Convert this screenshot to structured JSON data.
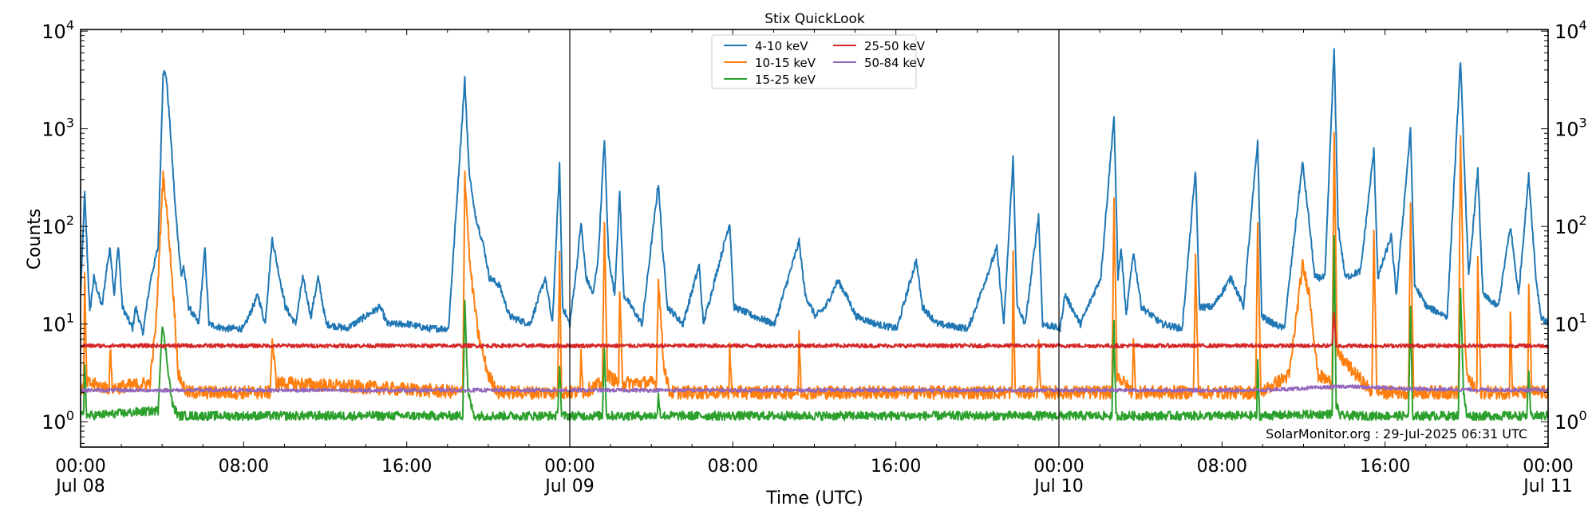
{
  "chart_data": {
    "type": "line",
    "title": "Stix QuickLook",
    "xlabel": "Time (UTC)",
    "ylabel": "Counts",
    "yscale": "log",
    "ylim": [
      0.55,
      10400
    ],
    "x_unit": "hours since 2025-07-08 00:00 UTC",
    "xlim": [
      0,
      72
    ],
    "grid": false,
    "legend_placement": "top-center",
    "annotation": "SolarMonitor.org : 29-Jul-2025 06:31 UTC",
    "day_boundaries": [
      24,
      48
    ],
    "x_ticks": [
      {
        "x": 0,
        "label": "00:00",
        "sublabel": "Jul 08"
      },
      {
        "x": 8,
        "label": "08:00",
        "sublabel": ""
      },
      {
        "x": 16,
        "label": "16:00",
        "sublabel": ""
      },
      {
        "x": 24,
        "label": "00:00",
        "sublabel": "Jul 09"
      },
      {
        "x": 32,
        "label": "08:00",
        "sublabel": ""
      },
      {
        "x": 40,
        "label": "16:00",
        "sublabel": ""
      },
      {
        "x": 48,
        "label": "00:00",
        "sublabel": "Jul 10"
      },
      {
        "x": 56,
        "label": "08:00",
        "sublabel": ""
      },
      {
        "x": 64,
        "label": "16:00",
        "sublabel": ""
      },
      {
        "x": 72,
        "label": "00:00",
        "sublabel": "Jul 11"
      }
    ],
    "y_ticks": [
      {
        "value": 1,
        "base": "10",
        "exp": "0"
      },
      {
        "value": 10,
        "base": "10",
        "exp": "1"
      },
      {
        "value": 100,
        "base": "10",
        "exp": "2"
      },
      {
        "value": 1000,
        "base": "10",
        "exp": "3"
      },
      {
        "value": 10000,
        "base": "10",
        "exp": "4"
      }
    ],
    "series": [
      {
        "name": "4-10 keV",
        "color": "#1f77b4",
        "points": [
          [
            0,
            20
          ],
          [
            0.2,
            220
          ],
          [
            0.45,
            13
          ],
          [
            0.65,
            30
          ],
          [
            1.05,
            15
          ],
          [
            1.3,
            40
          ],
          [
            1.45,
            60
          ],
          [
            1.65,
            20
          ],
          [
            1.85,
            65
          ],
          [
            2.05,
            15
          ],
          [
            2.55,
            9
          ],
          [
            2.7,
            15
          ],
          [
            3.05,
            8
          ],
          [
            3.45,
            30
          ],
          [
            3.8,
            60
          ],
          [
            4.05,
            3900
          ],
          [
            4.2,
            3500
          ],
          [
            4.4,
            1000
          ],
          [
            4.65,
            150
          ],
          [
            4.95,
            30
          ],
          [
            5.05,
            40
          ],
          [
            5.3,
            15
          ],
          [
            5.8,
            10
          ],
          [
            6.1,
            60
          ],
          [
            6.3,
            10
          ],
          [
            7.05,
            9
          ],
          [
            8.0,
            9
          ],
          [
            8.7,
            20
          ],
          [
            9.05,
            10
          ],
          [
            9.4,
            75
          ],
          [
            9.65,
            40
          ],
          [
            10.05,
            15
          ],
          [
            10.55,
            10
          ],
          [
            10.9,
            30
          ],
          [
            11.3,
            12
          ],
          [
            11.65,
            30
          ],
          [
            12.05,
            10
          ],
          [
            13.05,
            9
          ],
          [
            14.7,
            15
          ],
          [
            15.05,
            10
          ],
          [
            16.05,
            10
          ],
          [
            17.05,
            9
          ],
          [
            18.05,
            9
          ],
          [
            18.85,
            3200
          ],
          [
            19.05,
            400
          ],
          [
            19.3,
            150
          ],
          [
            19.8,
            60
          ],
          [
            20.05,
            30
          ],
          [
            20.55,
            25
          ],
          [
            21.05,
            12
          ],
          [
            22.05,
            10
          ],
          [
            22.8,
            30
          ],
          [
            23.15,
            10
          ],
          [
            23.5,
            420
          ],
          [
            23.65,
            15
          ],
          [
            24.0,
            10
          ],
          [
            24.35,
            40
          ],
          [
            24.55,
            110
          ],
          [
            24.8,
            30
          ],
          [
            25.15,
            20
          ],
          [
            25.4,
            50
          ],
          [
            25.7,
            800
          ],
          [
            25.9,
            50
          ],
          [
            26.2,
            20
          ],
          [
            26.45,
            220
          ],
          [
            26.65,
            20
          ],
          [
            27.55,
            10
          ],
          [
            28.35,
            280
          ],
          [
            28.55,
            60
          ],
          [
            28.8,
            15
          ],
          [
            29.55,
            10
          ],
          [
            30.35,
            40
          ],
          [
            30.55,
            10
          ],
          [
            31.85,
            110
          ],
          [
            32.05,
            15
          ],
          [
            33.05,
            12
          ],
          [
            34.05,
            10
          ],
          [
            35.25,
            70
          ],
          [
            35.55,
            20
          ],
          [
            36.05,
            12
          ],
          [
            36.55,
            15
          ],
          [
            37.15,
            28
          ],
          [
            37.55,
            20
          ],
          [
            38.05,
            12
          ],
          [
            39.05,
            10
          ],
          [
            40.05,
            9
          ],
          [
            41.0,
            45
          ],
          [
            41.3,
            15
          ],
          [
            42.05,
            10
          ],
          [
            43.55,
            9
          ],
          [
            44.95,
            60
          ],
          [
            45.3,
            10
          ],
          [
            45.75,
            500
          ],
          [
            45.95,
            15
          ],
          [
            46.35,
            10
          ],
          [
            47.0,
            130
          ],
          [
            47.2,
            10
          ],
          [
            48.05,
            9
          ],
          [
            48.3,
            20
          ],
          [
            49.05,
            10
          ],
          [
            50.05,
            30
          ],
          [
            50.7,
            1350
          ],
          [
            50.9,
            30
          ],
          [
            51.05,
            60
          ],
          [
            51.3,
            12
          ],
          [
            51.65,
            55
          ],
          [
            52.05,
            15
          ],
          [
            53.05,
            10
          ],
          [
            54.05,
            9
          ],
          [
            54.7,
            380
          ],
          [
            54.9,
            15
          ],
          [
            55.55,
            15
          ],
          [
            56.45,
            30
          ],
          [
            57.05,
            15
          ],
          [
            57.75,
            750
          ],
          [
            57.95,
            12
          ],
          [
            58.55,
            10
          ],
          [
            59.05,
            9
          ],
          [
            59.95,
            450
          ],
          [
            60.3,
            100
          ],
          [
            60.55,
            30
          ],
          [
            61.05,
            30
          ],
          [
            61.5,
            6500
          ],
          [
            61.7,
            100
          ],
          [
            62.05,
            30
          ],
          [
            62.8,
            35
          ],
          [
            63.45,
            600
          ],
          [
            63.65,
            30
          ],
          [
            64.3,
            80
          ],
          [
            64.55,
            20
          ],
          [
            65.25,
            1000
          ],
          [
            65.45,
            25
          ],
          [
            66.05,
            15
          ],
          [
            67.05,
            12
          ],
          [
            67.7,
            5100
          ],
          [
            67.9,
            370
          ],
          [
            68.1,
            30
          ],
          [
            68.55,
            370
          ],
          [
            68.8,
            20
          ],
          [
            69.55,
            15
          ],
          [
            70.15,
            100
          ],
          [
            70.55,
            20
          ],
          [
            71.05,
            330
          ],
          [
            71.4,
            30
          ],
          [
            71.65,
            12
          ],
          [
            72,
            10
          ]
        ]
      },
      {
        "name": "10-15 keV",
        "color": "#ff7f0e",
        "points": [
          [
            0,
            2.2
          ],
          [
            0.15,
            2.2
          ],
          [
            0.2,
            30
          ],
          [
            0.3,
            2.5
          ],
          [
            1.4,
            2.2
          ],
          [
            1.45,
            6
          ],
          [
            1.55,
            2.2
          ],
          [
            3.4,
            2.5
          ],
          [
            3.7,
            10
          ],
          [
            4.05,
            350
          ],
          [
            4.3,
            100
          ],
          [
            4.55,
            20
          ],
          [
            4.8,
            3
          ],
          [
            5.2,
            2
          ],
          [
            9.3,
            2
          ],
          [
            9.4,
            7
          ],
          [
            9.6,
            2.5
          ],
          [
            18.75,
            2
          ],
          [
            18.85,
            350
          ],
          [
            19.1,
            40
          ],
          [
            19.5,
            8
          ],
          [
            20,
            3
          ],
          [
            20.5,
            2
          ],
          [
            23.4,
            2
          ],
          [
            23.5,
            50
          ],
          [
            23.6,
            2
          ],
          [
            24.5,
            2
          ],
          [
            24.55,
            6
          ],
          [
            24.65,
            2
          ],
          [
            25.6,
            2.5
          ],
          [
            25.7,
            100
          ],
          [
            25.85,
            3
          ],
          [
            26.4,
            2.5
          ],
          [
            26.45,
            20
          ],
          [
            26.6,
            2.5
          ],
          [
            28.25,
            2.5
          ],
          [
            28.35,
            30
          ],
          [
            28.6,
            4
          ],
          [
            28.9,
            2
          ],
          [
            31.8,
            2
          ],
          [
            31.85,
            6
          ],
          [
            31.95,
            2
          ],
          [
            35.2,
            2
          ],
          [
            35.25,
            8
          ],
          [
            35.35,
            2
          ],
          [
            45.7,
            2
          ],
          [
            45.75,
            55
          ],
          [
            45.85,
            2
          ],
          [
            46.95,
            2
          ],
          [
            47.0,
            8
          ],
          [
            47.1,
            2
          ],
          [
            50.6,
            2
          ],
          [
            50.7,
            180
          ],
          [
            50.85,
            3
          ],
          [
            51.6,
            2
          ],
          [
            51.65,
            8
          ],
          [
            51.75,
            2
          ],
          [
            54.6,
            2
          ],
          [
            54.7,
            45
          ],
          [
            54.85,
            2
          ],
          [
            57.65,
            2
          ],
          [
            57.75,
            110
          ],
          [
            57.9,
            2
          ],
          [
            59.3,
            3
          ],
          [
            59.95,
            40
          ],
          [
            60.3,
            20
          ],
          [
            60.7,
            3
          ],
          [
            61.4,
            2.5
          ],
          [
            61.5,
            1000
          ],
          [
            61.65,
            5
          ],
          [
            63.35,
            2
          ],
          [
            63.45,
            80
          ],
          [
            63.6,
            2
          ],
          [
            65.15,
            2
          ],
          [
            65.25,
            150
          ],
          [
            65.4,
            2
          ],
          [
            67.6,
            2
          ],
          [
            67.7,
            800
          ],
          [
            67.85,
            20
          ],
          [
            68.0,
            3
          ],
          [
            68.5,
            2
          ],
          [
            68.55,
            45
          ],
          [
            68.7,
            2
          ],
          [
            70.1,
            2
          ],
          [
            70.15,
            15
          ],
          [
            70.25,
            2
          ],
          [
            71.0,
            2
          ],
          [
            71.05,
            25
          ],
          [
            71.2,
            2
          ],
          [
            72,
            2
          ]
        ]
      },
      {
        "name": "15-25 keV",
        "color": "#2ca02c",
        "points": [
          [
            0,
            1.15
          ],
          [
            0.15,
            1.15
          ],
          [
            0.2,
            4
          ],
          [
            0.3,
            1.15
          ],
          [
            3.8,
            1.3
          ],
          [
            4.0,
            10
          ],
          [
            4.2,
            5
          ],
          [
            4.5,
            1.5
          ],
          [
            4.8,
            1.15
          ],
          [
            18.75,
            1.15
          ],
          [
            18.85,
            18
          ],
          [
            19.0,
            2
          ],
          [
            19.3,
            1.15
          ],
          [
            23.4,
            1.15
          ],
          [
            23.5,
            4
          ],
          [
            23.6,
            1.15
          ],
          [
            25.6,
            1.15
          ],
          [
            25.7,
            6
          ],
          [
            25.8,
            1.15
          ],
          [
            28.3,
            1.15
          ],
          [
            28.35,
            2
          ],
          [
            28.45,
            1.15
          ],
          [
            50.6,
            1.15
          ],
          [
            50.7,
            10
          ],
          [
            50.8,
            1.15
          ],
          [
            57.7,
            1.15
          ],
          [
            57.75,
            4
          ],
          [
            57.85,
            1.15
          ],
          [
            61.4,
            1.2
          ],
          [
            61.5,
            80
          ],
          [
            61.6,
            1.5
          ],
          [
            61.8,
            1.15
          ],
          [
            65.15,
            1.15
          ],
          [
            65.25,
            15
          ],
          [
            65.35,
            1.15
          ],
          [
            67.6,
            1.15
          ],
          [
            67.7,
            25
          ],
          [
            67.85,
            2
          ],
          [
            68.0,
            1.15
          ],
          [
            70.95,
            1.15
          ],
          [
            71.05,
            3
          ],
          [
            71.15,
            1.15
          ],
          [
            72,
            1.15
          ]
        ]
      },
      {
        "name": "25-50 keV",
        "color": "#d62728",
        "points": [
          [
            0,
            6
          ],
          [
            61.4,
            6
          ],
          [
            61.5,
            13
          ],
          [
            61.6,
            6
          ],
          [
            72,
            6
          ]
        ]
      },
      {
        "name": "50-84 keV",
        "color": "#9467bd",
        "points": [
          [
            0,
            2.1
          ],
          [
            58,
            2.1
          ],
          [
            62,
            2.3
          ],
          [
            66,
            2.15
          ],
          [
            72,
            2.1
          ]
        ]
      }
    ]
  }
}
